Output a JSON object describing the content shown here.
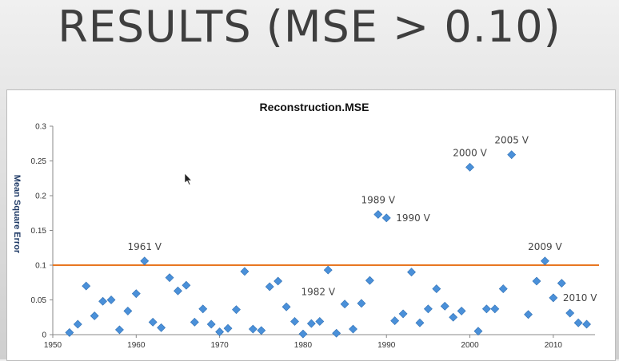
{
  "slide": {
    "title": "RESULTS (MSE > 0.10)"
  },
  "chart_data": {
    "type": "scatter",
    "title": "Reconstruction.MSE",
    "xlabel": "",
    "ylabel": "Mean Square Error",
    "xlim": [
      1950,
      2015
    ],
    "ylim": [
      0,
      0.3
    ],
    "x_ticks": [
      "1950",
      "1960",
      "1970",
      "1980",
      "1990",
      "2000",
      "2010"
    ],
    "y_ticks": [
      "0",
      "0.05",
      "0.1",
      "0.15",
      "0.2",
      "0.25",
      "0.3"
    ],
    "threshold": {
      "value": 0.1,
      "color": "#e87722"
    },
    "marker_color": "#4a90d9",
    "grid": false,
    "series": [
      {
        "x": [
          1952,
          1953,
          1954,
          1955,
          1956,
          1957,
          1958,
          1959,
          1960,
          1961,
          1962,
          1963,
          1964,
          1965,
          1966,
          1967,
          1968,
          1969,
          1970,
          1971,
          1972,
          1973,
          1974,
          1975,
          1976,
          1977,
          1978,
          1979,
          1980,
          1981,
          1982,
          1983,
          1984,
          1985,
          1986,
          1987,
          1988,
          1989,
          1990,
          1991,
          1992,
          1993,
          1994,
          1995,
          1996,
          1997,
          1998,
          1999,
          2000,
          2001,
          2002,
          2003,
          2004,
          2005,
          2007,
          2008,
          2009,
          2010,
          2011,
          2012,
          2013,
          2014
        ],
        "y": [
          0.003,
          0.015,
          0.07,
          0.027,
          0.048,
          0.05,
          0.007,
          0.034,
          0.059,
          0.106,
          0.018,
          0.01,
          0.082,
          0.063,
          0.071,
          0.018,
          0.037,
          0.015,
          0.004,
          0.009,
          0.036,
          0.091,
          0.008,
          0.006,
          0.069,
          0.077,
          0.04,
          0.019,
          0.001,
          0.016,
          0.019,
          0.093,
          0.002,
          0.044,
          0.008,
          0.045,
          0.078,
          0.173,
          0.168,
          0.02,
          0.03,
          0.09,
          0.017,
          0.037,
          0.066,
          0.041,
          0.025,
          0.034,
          0.241,
          0.005,
          0.037,
          0.037,
          0.066,
          0.259,
          0.029,
          0.077,
          0.106,
          0.053,
          0.074,
          0.031,
          0.017,
          0.015
        ]
      }
    ],
    "annotations": [
      {
        "text": "1961 V",
        "x": 1961,
        "y": 0.106
      },
      {
        "text": "1982 V",
        "x": 1982,
        "y": 0.019
      },
      {
        "text": "1989 V",
        "x": 1989,
        "y": 0.173
      },
      {
        "text": "1990 V",
        "x": 1990,
        "y": 0.168
      },
      {
        "text": "2000 V",
        "x": 2000,
        "y": 0.241
      },
      {
        "text": "2005 V",
        "x": 2005,
        "y": 0.259
      },
      {
        "text": "2009 V",
        "x": 2009,
        "y": 0.106
      },
      {
        "text": "2010 V",
        "x": 2010,
        "y": 0.053
      }
    ]
  }
}
